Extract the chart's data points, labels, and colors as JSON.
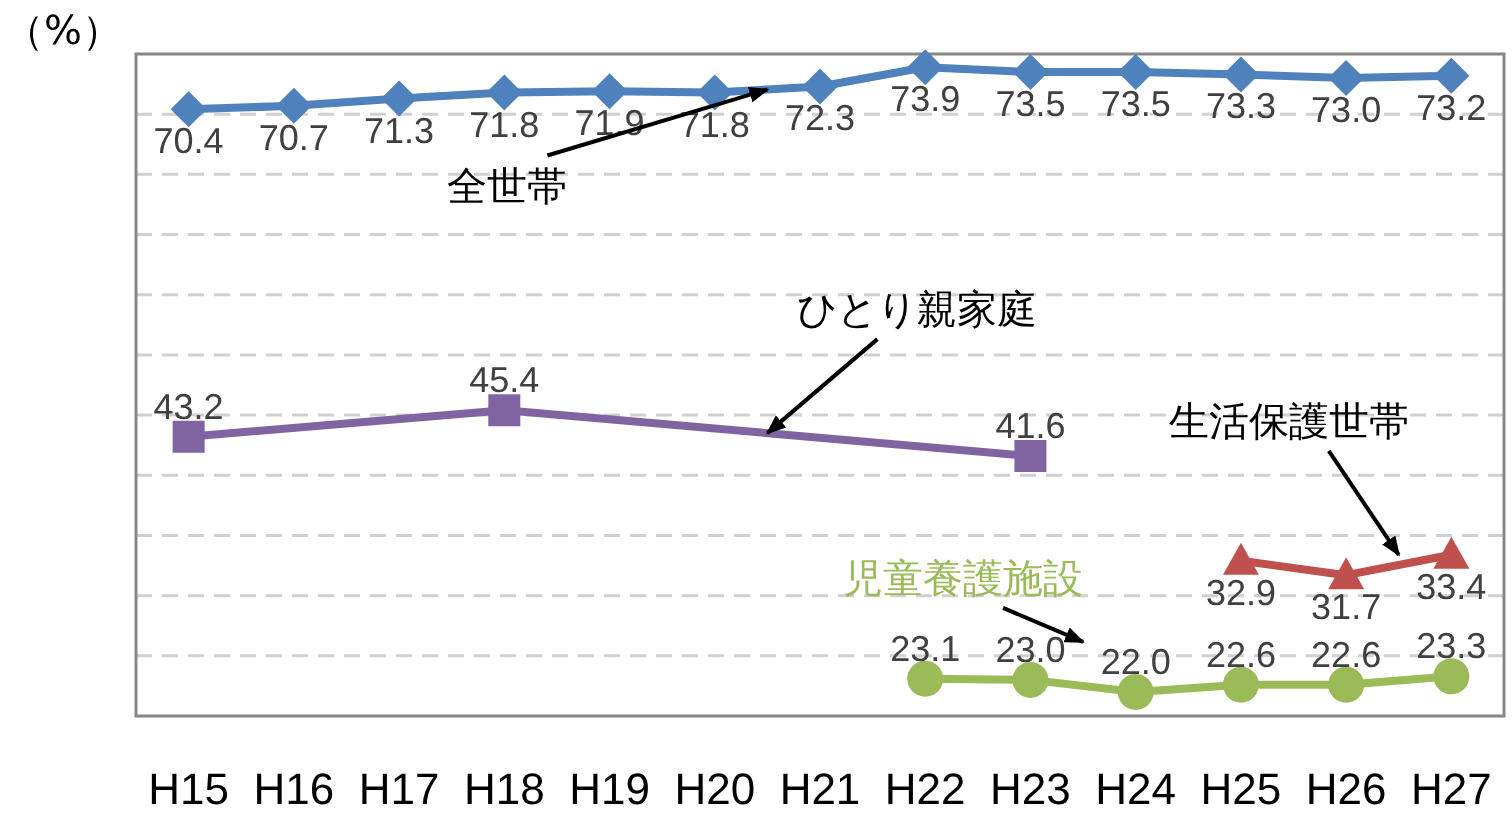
{
  "chart_data": {
    "type": "line",
    "ylabel": "（%）",
    "categories": [
      "H15",
      "H16",
      "H17",
      "H18",
      "H19",
      "H20",
      "H21",
      "H22",
      "H23",
      "H24",
      "H25",
      "H26",
      "H27"
    ],
    "series": [
      {
        "name": "全世帯",
        "color": "#4f81bd",
        "marker": "diamond",
        "values": [
          70.4,
          70.7,
          71.3,
          71.8,
          71.9,
          71.8,
          72.3,
          73.9,
          73.5,
          73.5,
          73.3,
          73.0,
          73.2
        ],
        "value_labels": [
          "70.4",
          "70.7",
          "71.3",
          "71.8",
          "71.9",
          "71.8",
          "72.3",
          "73.9",
          "73.5",
          "73.5",
          "73.3",
          "73.0",
          "73.2"
        ]
      },
      {
        "name": "ひとり親家庭",
        "color": "#8064a2",
        "marker": "square",
        "values": [
          43.2,
          null,
          null,
          45.4,
          null,
          null,
          null,
          null,
          41.6,
          null,
          null,
          null,
          null
        ],
        "value_labels": [
          "43.2",
          null,
          null,
          "45.4",
          null,
          null,
          null,
          null,
          "41.6",
          null,
          null,
          null,
          null
        ]
      },
      {
        "name": "生活保護世帯",
        "color": "#c0504d",
        "marker": "triangle",
        "values": [
          null,
          null,
          null,
          null,
          null,
          null,
          null,
          null,
          null,
          null,
          32.9,
          31.7,
          33.4
        ],
        "value_labels": [
          null,
          null,
          null,
          null,
          null,
          null,
          null,
          null,
          null,
          null,
          "32.9",
          "31.7",
          "33.4"
        ]
      },
      {
        "name": "児童養護施設",
        "color": "#9bbb59",
        "marker": "circle",
        "values": [
          null,
          null,
          null,
          null,
          null,
          null,
          null,
          23.1,
          23.0,
          22.0,
          22.6,
          22.6,
          23.3
        ],
        "value_labels": [
          null,
          null,
          null,
          null,
          null,
          null,
          null,
          "23.1",
          "23.0",
          "22.0",
          "22.6",
          "22.6",
          "23.3"
        ]
      }
    ],
    "ylim": [
      20,
      75
    ],
    "yticks": [
      {
        "value": 25,
        "label": null
      },
      {
        "value": 30,
        "label": null
      },
      {
        "value": 35,
        "label": null
      },
      {
        "value": 40,
        "label": null
      },
      {
        "value": 45,
        "label": null
      },
      {
        "value": 50,
        "label": null
      },
      {
        "value": 55,
        "label": null
      },
      {
        "value": 60,
        "label": null
      },
      {
        "value": 65,
        "label": null
      },
      {
        "value": 70,
        "label": null
      }
    ],
    "tick_labels": "x",
    "grid": "y",
    "line_style": "solid"
  }
}
